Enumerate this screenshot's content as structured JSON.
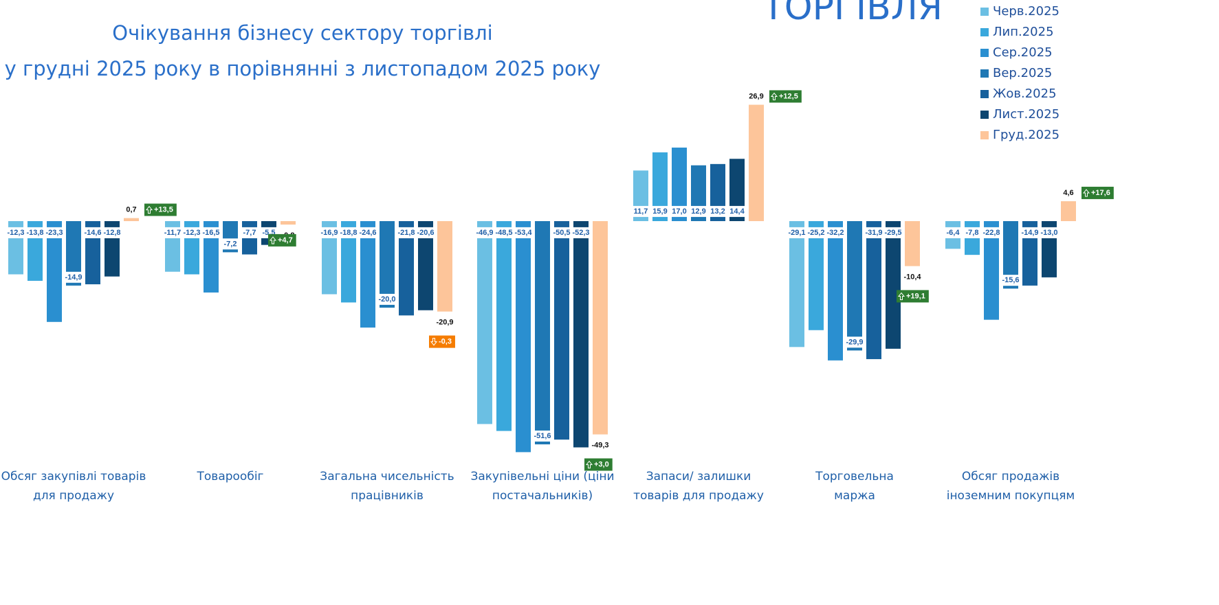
{
  "chart_data": {
    "type": "bar",
    "title": [
      "Очікування бізнесу сектору торгівлі",
      "у грудні 2025 року в порівнянні з листопадом 2025 року"
    ],
    "header_label": "ТОРГІВЛЯ",
    "categories": [
      [
        "Обсяг закупівлі товарів",
        "для продажу"
      ],
      [
        "Товарообіг"
      ],
      [
        "Загальна чисельність",
        "працівників"
      ],
      [
        "Закупівельні ціни (ціни",
        "постачальників)"
      ],
      [
        "Запаси/ залишки",
        "товарів для продажу"
      ],
      [
        "Торговельна",
        "маржа"
      ],
      [
        "Обсяг продажів",
        "іноземним покупцям"
      ]
    ],
    "series": [
      {
        "name": "Черв.2025",
        "color": "#6bbfe3",
        "values": [
          -12.3,
          -11.7,
          -16.9,
          -46.9,
          11.7,
          -29.1,
          -6.4
        ],
        "value_labels": [
          "-12,3",
          "-11,7",
          "-16,9",
          "-46,9",
          "11,7",
          "-29,1",
          "-6,4"
        ]
      },
      {
        "name": "Лип.2025",
        "color": "#3aa8dc",
        "values": [
          -13.8,
          -12.3,
          -18.8,
          -48.5,
          15.9,
          -25.2,
          -7.8
        ],
        "value_labels": [
          "-13,8",
          "-12,3",
          "-18,8",
          "-48,5",
          "15,9",
          "-25,2",
          "-7,8"
        ]
      },
      {
        "name": "Сер.2025",
        "color": "#2a8fd0",
        "values": [
          -23.3,
          -16.5,
          -24.6,
          -53.4,
          17.0,
          -32.2,
          -22.8
        ],
        "value_labels": [
          "-23,3",
          "-16,5",
          "-24,6",
          "-53,4",
          "17,0",
          "-32,2",
          "-22,8"
        ]
      },
      {
        "name": "Вер.2025",
        "color": "#1f78b4",
        "values": [
          -14.9,
          -7.2,
          -20.0,
          -51.6,
          12.9,
          -29.9,
          -15.6
        ],
        "value_labels": [
          "-14,9",
          "-7,2",
          "-20,0",
          "-51,6",
          "12,9",
          "-29,9",
          "-15,6"
        ]
      },
      {
        "name": "Жов.2025",
        "color": "#17619c",
        "values": [
          -14.6,
          -7.7,
          -21.8,
          -50.5,
          13.2,
          -31.9,
          -14.9
        ],
        "value_labels": [
          "-14,6",
          "-7,7",
          "-21,8",
          "-50,5",
          "13,2",
          "-31,9",
          "-14,9"
        ]
      },
      {
        "name": "Лист.2025",
        "color": "#0d4670",
        "values": [
          -12.8,
          -5.5,
          -20.6,
          -52.3,
          14.4,
          -29.5,
          -13.0
        ],
        "value_labels": [
          "-12,8",
          "-5,5",
          "-20,6",
          "-52,3",
          "14,4",
          "-29,5",
          "-13,0"
        ]
      },
      {
        "name": "Груд.2025",
        "color": "#fdc59a",
        "values": [
          0.7,
          -0.8,
          -20.9,
          -49.3,
          26.9,
          -10.4,
          4.6
        ],
        "value_labels": [
          "0,7",
          "-0,8",
          "-20,9",
          "-49,3",
          "26,9",
          "-10,4",
          "4,6"
        ]
      }
    ],
    "changes": [
      13.5,
      4.7,
      -0.3,
      3.0,
      12.5,
      19.1,
      17.6
    ],
    "change_labels": [
      "+13,5",
      "+4,7",
      "-0,3",
      "+3,0",
      "+12,5",
      "+19,1",
      "+17,6"
    ]
  }
}
